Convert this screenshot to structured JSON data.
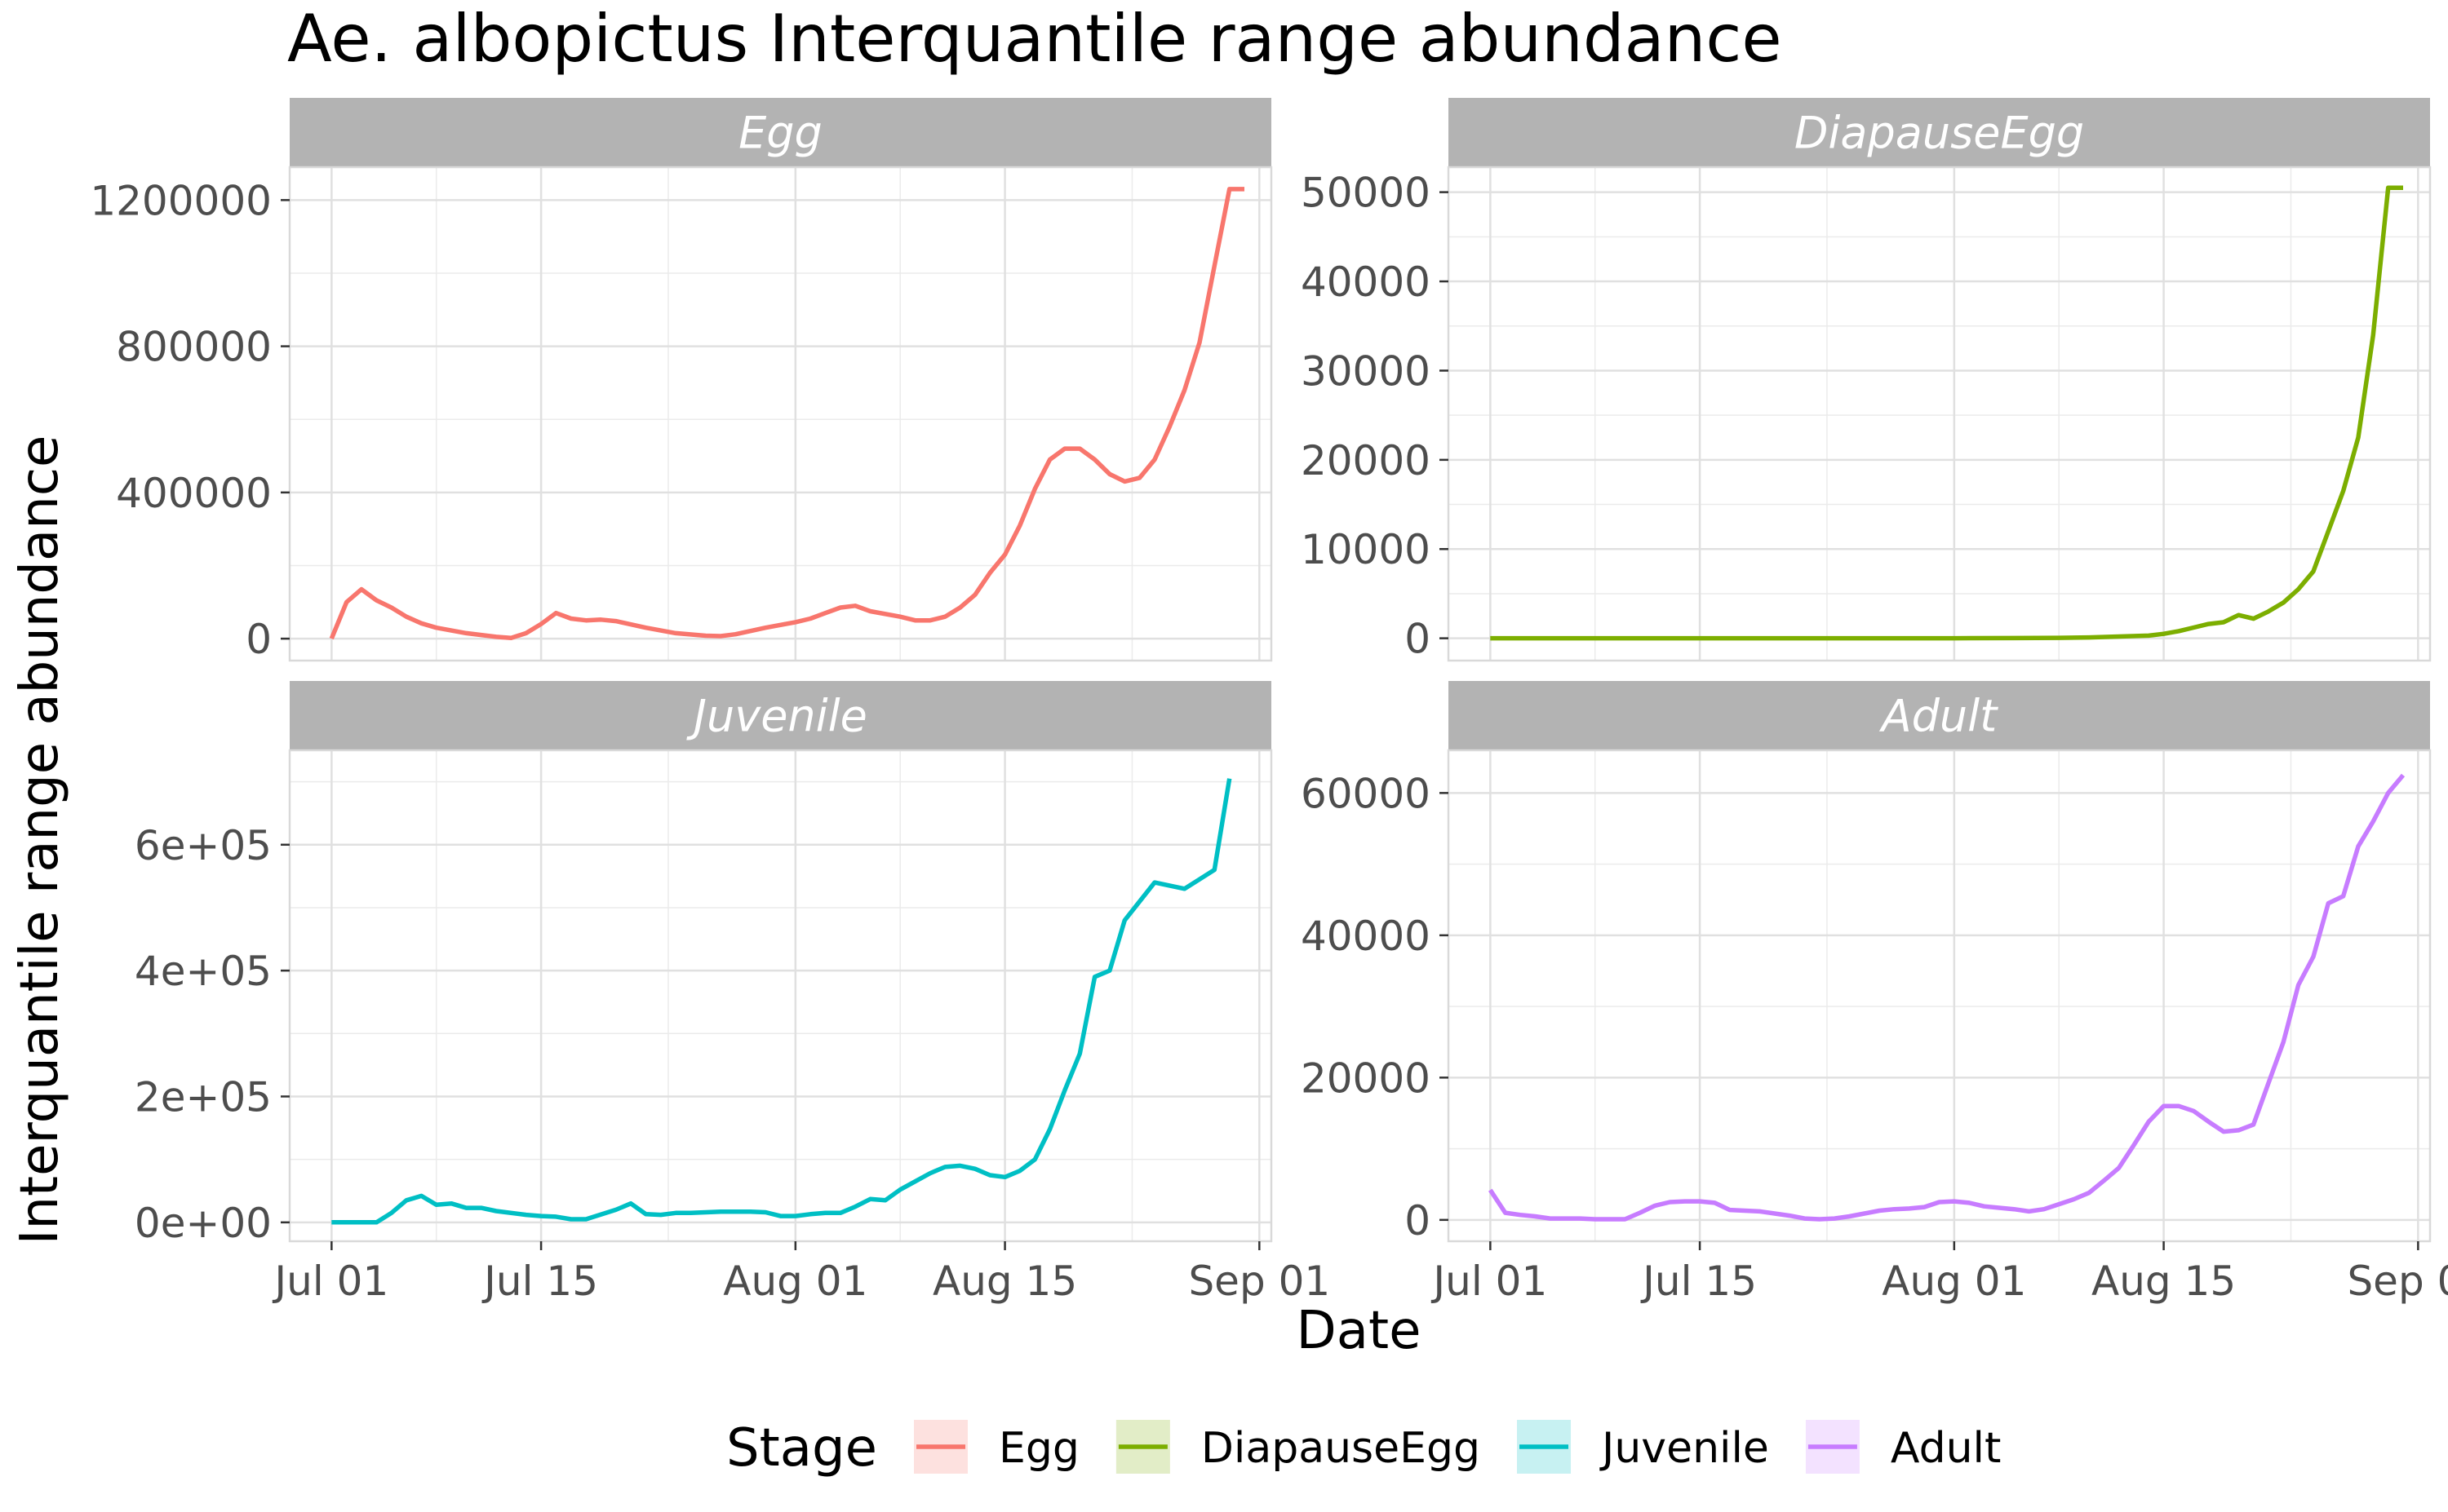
{
  "chart_data": {
    "type": "line",
    "title": "Ae. albopictus Interquantile range abundance",
    "xlabel": "Date",
    "ylabel": "Interquantile range abundance",
    "x_tick_labels": [
      "Jul 01",
      "Jul 15",
      "Aug 01",
      "Aug 15",
      "Sep 01"
    ],
    "legend": {
      "title": "Stage",
      "position": "bottom",
      "entries": [
        {
          "label": "Egg",
          "color": "#F8766D"
        },
        {
          "label": "DiapauseEgg",
          "color": "#7CAE00"
        },
        {
          "label": "Juvenile",
          "color": "#00BFC4"
        },
        {
          "label": "Adult",
          "color": "#C77CFF"
        }
      ]
    },
    "grid": true,
    "panels": [
      {
        "name": "Egg",
        "color": "#F8766D",
        "ylim": [
          -60000,
          1290000
        ],
        "ytick_values": [
          0,
          400000,
          800000,
          1200000
        ],
        "ytick_labels": [
          "0",
          "400000",
          "800000",
          "1200000"
        ],
        "x": [
          "2023-07-01",
          "2023-07-02",
          "2023-07-03",
          "2023-07-04",
          "2023-07-05",
          "2023-07-06",
          "2023-07-07",
          "2023-07-08",
          "2023-07-10",
          "2023-07-12",
          "2023-07-13",
          "2023-07-14",
          "2023-07-15",
          "2023-07-16",
          "2023-07-17",
          "2023-07-18",
          "2023-07-19",
          "2023-07-20",
          "2023-07-22",
          "2023-07-24",
          "2023-07-26",
          "2023-07-27",
          "2023-07-28",
          "2023-07-30",
          "2023-08-01",
          "2023-08-02",
          "2023-08-03",
          "2023-08-04",
          "2023-08-05",
          "2023-08-06",
          "2023-08-08",
          "2023-08-09",
          "2023-08-10",
          "2023-08-11",
          "2023-08-12",
          "2023-08-13",
          "2023-08-14",
          "2023-08-15",
          "2023-08-16",
          "2023-08-17",
          "2023-08-18",
          "2023-08-19",
          "2023-08-20",
          "2023-08-21",
          "2023-08-22",
          "2023-08-23",
          "2023-08-24",
          "2023-08-25",
          "2023-08-26",
          "2023-08-27",
          "2023-08-28",
          "2023-08-29",
          "2023-08-30",
          "2023-08-31"
        ],
        "y": [
          0,
          100000,
          135000,
          105000,
          85000,
          60000,
          42000,
          30000,
          15000,
          5000,
          2000,
          15000,
          40000,
          70000,
          55000,
          50000,
          52000,
          48000,
          30000,
          15000,
          8000,
          7000,
          12000,
          30000,
          45000,
          55000,
          70000,
          85000,
          90000,
          75000,
          60000,
          50000,
          50000,
          60000,
          85000,
          120000,
          180000,
          230000,
          310000,
          410000,
          490000,
          520000,
          520000,
          490000,
          450000,
          430000,
          440000,
          490000,
          580000,
          680000,
          810000,
          1020000,
          1230000,
          1230000
        ]
      },
      {
        "name": "DiapauseEgg",
        "color": "#7CAE00",
        "ylim": [
          -2500,
          52800
        ],
        "ytick_values": [
          0,
          10000,
          20000,
          30000,
          40000,
          50000
        ],
        "ytick_labels": [
          "0",
          "10000",
          "20000",
          "30000",
          "40000",
          "50000"
        ],
        "x": [
          "2023-07-01",
          "2023-07-15",
          "2023-08-01",
          "2023-08-05",
          "2023-08-08",
          "2023-08-10",
          "2023-08-12",
          "2023-08-14",
          "2023-08-15",
          "2023-08-16",
          "2023-08-17",
          "2023-08-18",
          "2023-08-19",
          "2023-08-20",
          "2023-08-21",
          "2023-08-22",
          "2023-08-23",
          "2023-08-24",
          "2023-08-25",
          "2023-08-26",
          "2023-08-27",
          "2023-08-28",
          "2023-08-29",
          "2023-08-30",
          "2023-08-31"
        ],
        "y": [
          0,
          0,
          0,
          20,
          50,
          100,
          200,
          300,
          500,
          800,
          1200,
          1600,
          1800,
          2600,
          2200,
          3000,
          4000,
          5500,
          7500,
          12000,
          16500,
          22500,
          34000,
          50500,
          50500
        ]
      },
      {
        "name": "Juvenile",
        "color": "#00BFC4",
        "ylim": [
          -30000,
          750000
        ],
        "ytick_values": [
          0,
          200000,
          400000,
          600000
        ],
        "ytick_labels": [
          "0e+00",
          "2e+05",
          "4e+05",
          "6e+05"
        ],
        "x": [
          "2023-07-01",
          "2023-07-02",
          "2023-07-04",
          "2023-07-05",
          "2023-07-06",
          "2023-07-07",
          "2023-07-08",
          "2023-07-09",
          "2023-07-10",
          "2023-07-11",
          "2023-07-12",
          "2023-07-14",
          "2023-07-15",
          "2023-07-16",
          "2023-07-17",
          "2023-07-18",
          "2023-07-20",
          "2023-07-21",
          "2023-07-22",
          "2023-07-23",
          "2023-07-24",
          "2023-07-25",
          "2023-07-27",
          "2023-07-29",
          "2023-07-30",
          "2023-07-31",
          "2023-08-01",
          "2023-08-02",
          "2023-08-03",
          "2023-08-04",
          "2023-08-05",
          "2023-08-06",
          "2023-08-07",
          "2023-08-08",
          "2023-08-09",
          "2023-08-10",
          "2023-08-11",
          "2023-08-12",
          "2023-08-13",
          "2023-08-14",
          "2023-08-15",
          "2023-08-16",
          "2023-08-17",
          "2023-08-18",
          "2023-08-19",
          "2023-08-20",
          "2023-08-21",
          "2023-08-22",
          "2023-08-23",
          "2023-08-25",
          "2023-08-27",
          "2023-08-28",
          "2023-08-29",
          "2023-08-30"
        ],
        "y": [
          0,
          0,
          0,
          15000,
          35000,
          42000,
          28000,
          30000,
          23000,
          23000,
          18000,
          12000,
          10000,
          9000,
          5000,
          5000,
          20000,
          30000,
          13000,
          12000,
          15000,
          15000,
          17000,
          17000,
          16000,
          10000,
          10000,
          13000,
          15000,
          15000,
          25000,
          37000,
          35000,
          52000,
          65000,
          78000,
          88000,
          90000,
          85000,
          75000,
          72000,
          82000,
          100000,
          148000,
          210000,
          268000,
          390000,
          400000,
          480000,
          540000,
          530000,
          545000,
          560000,
          705000
        ]
      },
      {
        "name": "Adult",
        "color": "#C77CFF",
        "ylim": [
          -3000,
          66000
        ],
        "ytick_values": [
          0,
          20000,
          40000,
          60000
        ],
        "ytick_labels": [
          "0",
          "20000",
          "40000",
          "60000"
        ],
        "x": [
          "2023-07-01",
          "2023-07-02",
          "2023-07-03",
          "2023-07-04",
          "2023-07-05",
          "2023-07-06",
          "2023-07-07",
          "2023-07-08",
          "2023-07-09",
          "2023-07-10",
          "2023-07-11",
          "2023-07-12",
          "2023-07-13",
          "2023-07-14",
          "2023-07-15",
          "2023-07-16",
          "2023-07-17",
          "2023-07-18",
          "2023-07-19",
          "2023-07-20",
          "2023-07-21",
          "2023-07-22",
          "2023-07-23",
          "2023-07-24",
          "2023-07-25",
          "2023-07-26",
          "2023-07-27",
          "2023-07-28",
          "2023-07-29",
          "2023-07-30",
          "2023-07-31",
          "2023-08-01",
          "2023-08-02",
          "2023-08-03",
          "2023-08-04",
          "2023-08-05",
          "2023-08-06",
          "2023-08-07",
          "2023-08-08",
          "2023-08-09",
          "2023-08-10",
          "2023-08-11",
          "2023-08-12",
          "2023-08-13",
          "2023-08-14",
          "2023-08-15",
          "2023-08-16",
          "2023-08-17",
          "2023-08-18",
          "2023-08-19",
          "2023-08-20",
          "2023-08-21",
          "2023-08-22",
          "2023-08-23",
          "2023-08-24",
          "2023-08-25",
          "2023-08-26",
          "2023-08-27",
          "2023-08-28",
          "2023-08-29",
          "2023-08-30",
          "2023-08-31"
        ],
        "y": [
          4200,
          1000,
          700,
          500,
          200,
          200,
          200,
          100,
          100,
          100,
          1000,
          2000,
          2500,
          2600,
          2600,
          2400,
          1400,
          1300,
          1200,
          900,
          600,
          200,
          100,
          200,
          500,
          900,
          1300,
          1500,
          1600,
          1800,
          2500,
          2600,
          2400,
          1900,
          1700,
          1500,
          1200,
          1500,
          2200,
          2900,
          3800,
          5500,
          7300,
          10500,
          13800,
          16000,
          16000,
          15300,
          13800,
          12400,
          12600,
          13400,
          19200,
          25000,
          33000,
          37000,
          44500,
          45500,
          52500,
          56000,
          60000,
          62500
        ]
      }
    ]
  }
}
